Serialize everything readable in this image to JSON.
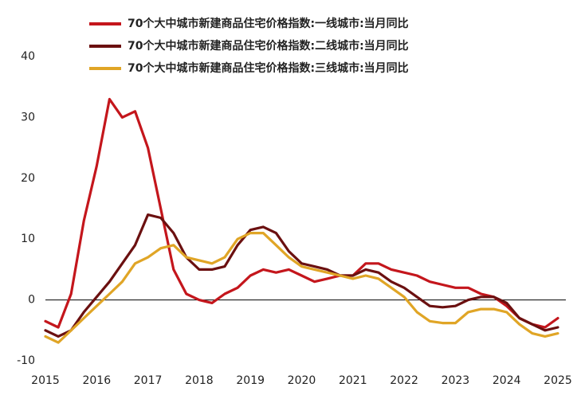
{
  "chart_data": {
    "type": "line",
    "x": [
      2015,
      2015.25,
      2015.5,
      2015.75,
      2016,
      2016.25,
      2016.5,
      2016.75,
      2017,
      2017.25,
      2017.5,
      2017.75,
      2018,
      2018.25,
      2018.5,
      2018.75,
      2019,
      2019.25,
      2019.5,
      2019.75,
      2020,
      2020.25,
      2020.5,
      2020.75,
      2021,
      2021.25,
      2021.5,
      2021.75,
      2022,
      2022.25,
      2022.5,
      2022.75,
      2023,
      2023.25,
      2023.5,
      2023.75,
      2024,
      2024.25,
      2024.5,
      2024.75,
      2025
    ],
    "series": [
      {
        "name": "70个大中城市新建商品住宅价格指数:一线城市:当月同比",
        "color": "#c4161c",
        "values": [
          -3.5,
          -4.5,
          1,
          13,
          22,
          33,
          30,
          31,
          25,
          15,
          5,
          1,
          0,
          -0.5,
          1,
          2,
          4,
          5,
          4.5,
          5,
          4,
          3,
          3.5,
          4,
          4,
          6,
          6,
          5,
          4.5,
          4,
          3,
          2.5,
          2,
          2,
          1,
          0.5,
          -1,
          -3,
          -4,
          -4.5,
          -3
        ]
      },
      {
        "name": "70个大中城市新建商品住宅价格指数:二线城市:当月同比",
        "color": "#6b1010",
        "values": [
          -5,
          -6,
          -5,
          -2,
          0.5,
          3,
          6,
          9,
          14,
          13.5,
          11,
          7,
          5,
          5,
          5.5,
          9,
          11.5,
          12,
          11,
          8,
          6,
          5.5,
          5,
          4,
          4,
          5,
          4.5,
          3,
          2,
          0.5,
          -1,
          -1.2,
          -1,
          0,
          0.5,
          0.5,
          -0.5,
          -3,
          -4,
          -5,
          -4.5
        ]
      },
      {
        "name": "70个大中城市新建商品住宅价格指数:三线城市:当月同比",
        "color": "#e0a526",
        "values": [
          -6,
          -7,
          -5,
          -3,
          -1,
          1,
          3,
          6,
          7,
          8.5,
          9,
          7,
          6.5,
          6,
          7,
          10,
          11,
          11,
          9,
          7,
          5.5,
          5,
          4.5,
          4,
          3.5,
          4,
          3.5,
          2,
          0.5,
          -2,
          -3.5,
          -3.8,
          -3.8,
          -2,
          -1.5,
          -1.5,
          -2,
          -4,
          -5.5,
          -6,
          -5.5
        ]
      }
    ],
    "xlim": [
      2015,
      2025
    ],
    "xticks": [
      2015,
      2016,
      2017,
      2018,
      2019,
      2020,
      2021,
      2022,
      2023,
      2024,
      2025
    ],
    "ylim": [
      -10,
      40
    ],
    "yticks": [
      -10,
      0,
      10,
      20,
      30,
      40
    ],
    "grid": false,
    "legend": "top"
  }
}
